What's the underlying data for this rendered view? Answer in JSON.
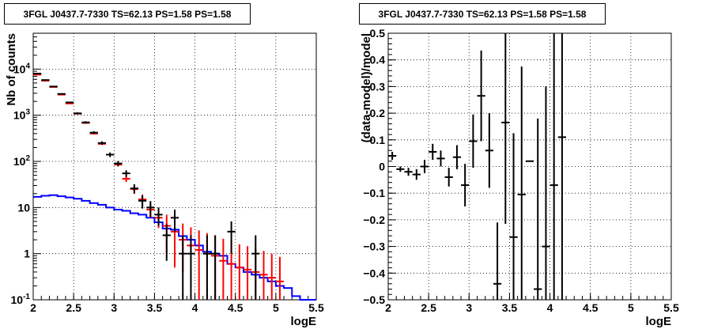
{
  "chart_data": [
    {
      "type": "scatter",
      "title": "3FGL J0437.7-7330 TS=62.13 PS=1.58 PS=1.58",
      "xlabel": "logE",
      "ylabel": "Nb of counts",
      "xlim": [
        2,
        5.5
      ],
      "ylim": [
        0.1,
        60000
      ],
      "yscale": "log",
      "grid": true,
      "x_ticks": [
        "2",
        "2.5",
        "3",
        "3.5",
        "4",
        "4.5",
        "5",
        "5.5"
      ],
      "y_ticks": [
        "10^-1",
        "1",
        "10",
        "10^2",
        "10^3",
        "10^4"
      ],
      "colors": {
        "data": "#000000",
        "model_points": "#ff0000",
        "model_line": "#0000ff"
      },
      "series": [
        {
          "name": "",
          "style": "black-crosses",
          "x": [
            2.05,
            2.15,
            2.25,
            2.35,
            2.45,
            2.55,
            2.65,
            2.75,
            2.85,
            2.95,
            3.05,
            3.15,
            3.25,
            3.35,
            3.45,
            3.55,
            3.65,
            3.75,
            3.85,
            3.95,
            4.05,
            4.15,
            4.25,
            4.35,
            4.45,
            4.55,
            4.65,
            4.75,
            4.85,
            4.95,
            5.05,
            5.15
          ],
          "y": [
            8000,
            5800,
            4200,
            2900,
            1900,
            1100,
            700,
            420,
            250,
            140,
            90,
            55,
            26,
            14,
            10,
            7,
            2.5,
            6,
            1,
            1,
            0.1,
            1,
            1,
            0.1,
            3,
            0.1,
            0.1,
            1,
            0.1,
            0.1,
            0.1,
            0.1
          ],
          "y_err_low": [
            200,
            150,
            120,
            90,
            70,
            50,
            40,
            30,
            22,
            16,
            12,
            9,
            6,
            4.5,
            3.8,
            3,
            1.8,
            3,
            0.9,
            0.9,
            0,
            0.9,
            0.9,
            0,
            2,
            0,
            0,
            0.9,
            0,
            0,
            0,
            0
          ],
          "y_err_high": [
            200,
            150,
            120,
            90,
            70,
            50,
            40,
            30,
            22,
            16,
            12,
            9,
            6,
            4.5,
            3.8,
            3,
            1.8,
            3,
            1.5,
            1.5,
            0,
            1.5,
            1.5,
            0,
            2,
            0,
            0,
            1.5,
            0,
            0,
            0,
            0
          ]
        },
        {
          "name": "",
          "style": "red-crosses",
          "x": [
            2.05,
            2.15,
            2.25,
            2.35,
            2.45,
            2.55,
            2.65,
            2.75,
            2.85,
            2.95,
            3.05,
            3.15,
            3.25,
            3.35,
            3.45,
            3.55,
            3.65,
            3.75,
            3.85,
            3.95,
            4.05,
            4.15,
            4.25,
            4.35,
            4.45,
            4.55,
            4.65,
            4.75,
            4.85,
            4.95,
            5.05
          ],
          "y": [
            7600,
            5600,
            4100,
            2800,
            1800,
            1080,
            680,
            400,
            240,
            140,
            85,
            42,
            25,
            15,
            9,
            6,
            4,
            3,
            2,
            1.5,
            1.2,
            1,
            0.9,
            0.7,
            0.6,
            0.5,
            0.45,
            0.4,
            0.35,
            0.3,
            0.25
          ],
          "y_err_low": [
            0,
            0,
            0,
            0,
            0,
            0,
            0,
            0,
            0,
            0,
            0,
            6,
            5,
            4,
            3,
            2.4,
            3,
            2.5,
            1.6,
            1.3,
            1.1,
            0.95,
            0.85,
            0.65,
            0.55,
            0.46,
            0.41,
            0.37,
            0.33,
            0.28,
            0.23
          ],
          "y_err_high": [
            0,
            0,
            0,
            0,
            0,
            0,
            0,
            0,
            0,
            0,
            0,
            6,
            5,
            4,
            3,
            2.4,
            3,
            3,
            2.5,
            2.2,
            2,
            1.8,
            1.6,
            1.4,
            1.3,
            1.1,
            1,
            0.9,
            0.8,
            0.7,
            0.6
          ]
        },
        {
          "name": "",
          "style": "blue-step",
          "edges": [
            2.0,
            2.1,
            2.2,
            2.3,
            2.4,
            2.5,
            2.6,
            2.7,
            2.8,
            2.9,
            3.0,
            3.1,
            3.2,
            3.3,
            3.4,
            3.5,
            3.6,
            3.7,
            3.8,
            3.9,
            4.0,
            4.1,
            4.2,
            4.3,
            4.4,
            4.5,
            4.6,
            4.7,
            4.8,
            4.9,
            5.0,
            5.1,
            5.2,
            5.3,
            5.4,
            5.5
          ],
          "values": [
            17,
            18,
            18.5,
            17.5,
            16.5,
            15.5,
            14,
            12.5,
            11.5,
            10,
            9,
            8.5,
            7.5,
            7,
            6,
            4.8,
            3.5,
            3.3,
            2.4,
            2,
            1.5,
            1.1,
            1,
            0.9,
            0.6,
            0.5,
            0.4,
            0.35,
            0.3,
            0.25,
            0.2,
            0.18,
            0.12,
            0.1,
            0.1
          ]
        }
      ]
    },
    {
      "type": "scatter",
      "title": "3FGL J0437.7-7330 TS=62.13 PS=1.58 PS=1.58",
      "xlabel": "logE",
      "ylabel": "(data-model)/model",
      "xlim": [
        2,
        5.5
      ],
      "ylim": [
        -0.5,
        0.5
      ],
      "grid": true,
      "x_ticks": [
        "2",
        "2.5",
        "3",
        "3.5",
        "4",
        "4.5",
        "5",
        "5.5"
      ],
      "y_ticks": [
        "-0.5",
        "-0.4",
        "-0.3",
        "-0.2",
        "-0.1",
        "0",
        "0.1",
        "0.2",
        "0.3",
        "0.4",
        "0.5"
      ],
      "colors": {
        "data": "#000000"
      },
      "series": [
        {
          "name": "",
          "x": [
            2.05,
            2.15,
            2.25,
            2.35,
            2.45,
            2.55,
            2.65,
            2.75,
            2.85,
            2.95,
            3.05,
            3.15,
            3.25,
            3.35,
            3.45,
            3.55,
            3.65,
            3.75,
            3.85,
            3.95,
            4.05,
            4.15
          ],
          "y": [
            0.04,
            -0.01,
            -0.02,
            -0.03,
            0.0,
            0.055,
            0.03,
            -0.04,
            0.035,
            -0.07,
            0.095,
            0.265,
            0.06,
            -0.44,
            0.165,
            -0.265,
            -0.105,
            0.02,
            -0.46,
            -0.3,
            -0.07,
            0.11
          ],
          "y_err": [
            0.015,
            0.01,
            0.015,
            0.02,
            0.025,
            0.03,
            0.03,
            0.035,
            0.045,
            0.08,
            0.1,
            0.17,
            0.14,
            0.23,
            0.38,
            0.39,
            0.48,
            0.0,
            0.64,
            0.6,
            0.6,
            0.8
          ]
        }
      ]
    }
  ]
}
